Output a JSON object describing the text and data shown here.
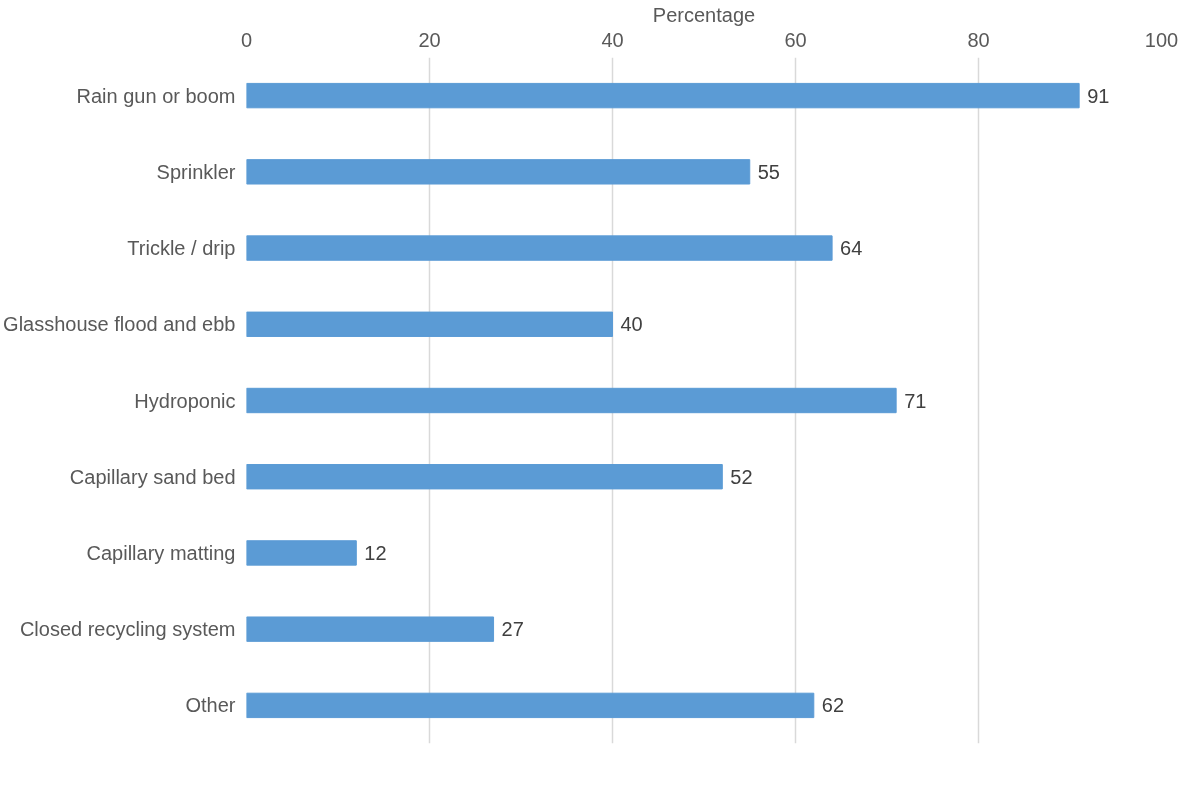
{
  "chart_data": {
    "type": "bar",
    "orientation": "horizontal",
    "xlabel": "Percentage",
    "categories": [
      "Rain gun or boom",
      "Sprinkler",
      "Trickle / drip",
      "Glasshouse flood and ebb",
      "Hydroponic",
      "Capillary sand bed",
      "Capillary matting",
      "Closed recycling system",
      "Other"
    ],
    "values": [
      91,
      55,
      64,
      40,
      71,
      52,
      12,
      27,
      62
    ],
    "color": "#5b9bd5",
    "xlim": [
      0,
      100
    ],
    "xticks": [
      0,
      20,
      40,
      60,
      80,
      100
    ],
    "grid": "x",
    "data_labels": true
  }
}
